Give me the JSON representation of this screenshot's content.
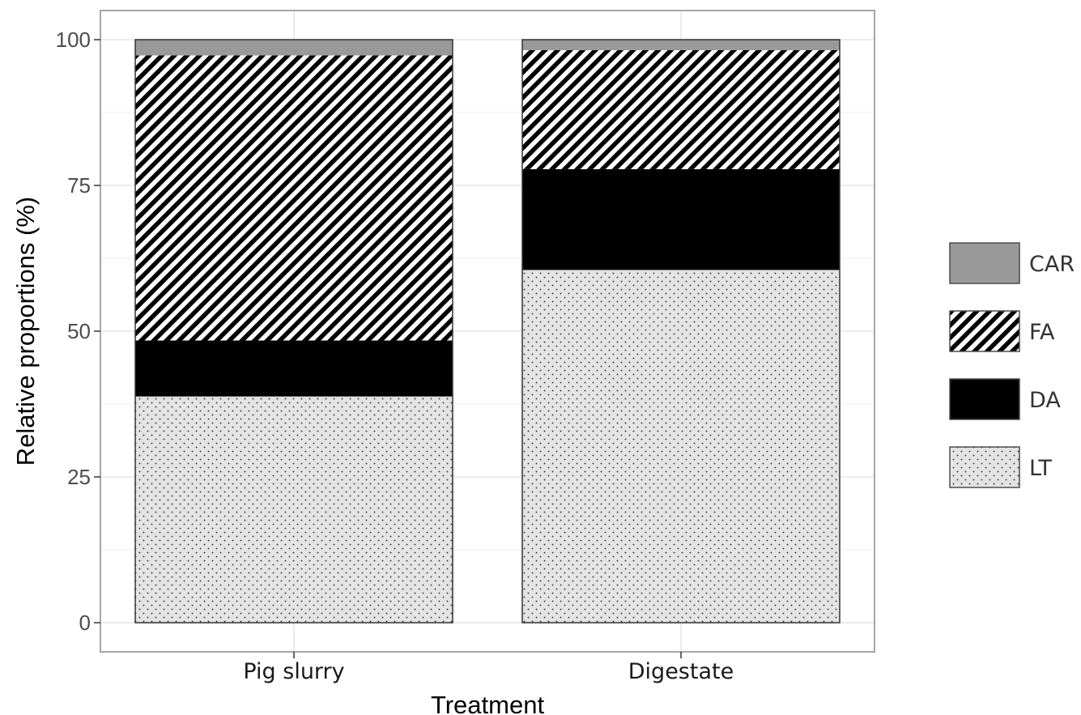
{
  "chart_data": {
    "type": "bar",
    "stacked": true,
    "categories": [
      "Pig slurry",
      "Digestate"
    ],
    "series": [
      {
        "name": "LT",
        "values": [
          38.8,
          60.5
        ],
        "fill": "dots",
        "color": "#e3e3e3"
      },
      {
        "name": "DA",
        "values": [
          9.6,
          17.3
        ],
        "fill": "solid",
        "color": "#000000"
      },
      {
        "name": "FA",
        "values": [
          48.9,
          20.4
        ],
        "fill": "diagonal-stripes",
        "color": "#000000"
      },
      {
        "name": "CAR",
        "values": [
          2.7,
          1.8
        ],
        "fill": "solid",
        "color": "#999999"
      }
    ],
    "xlabel": "Treatment",
    "ylabel": "Relative proportions (%)",
    "ylim": [
      -5,
      105
    ],
    "yticks": [
      0,
      25,
      50,
      75,
      100
    ],
    "grid": true,
    "legend_position": "right",
    "legend_order": [
      "CAR",
      "FA",
      "DA",
      "LT"
    ]
  }
}
